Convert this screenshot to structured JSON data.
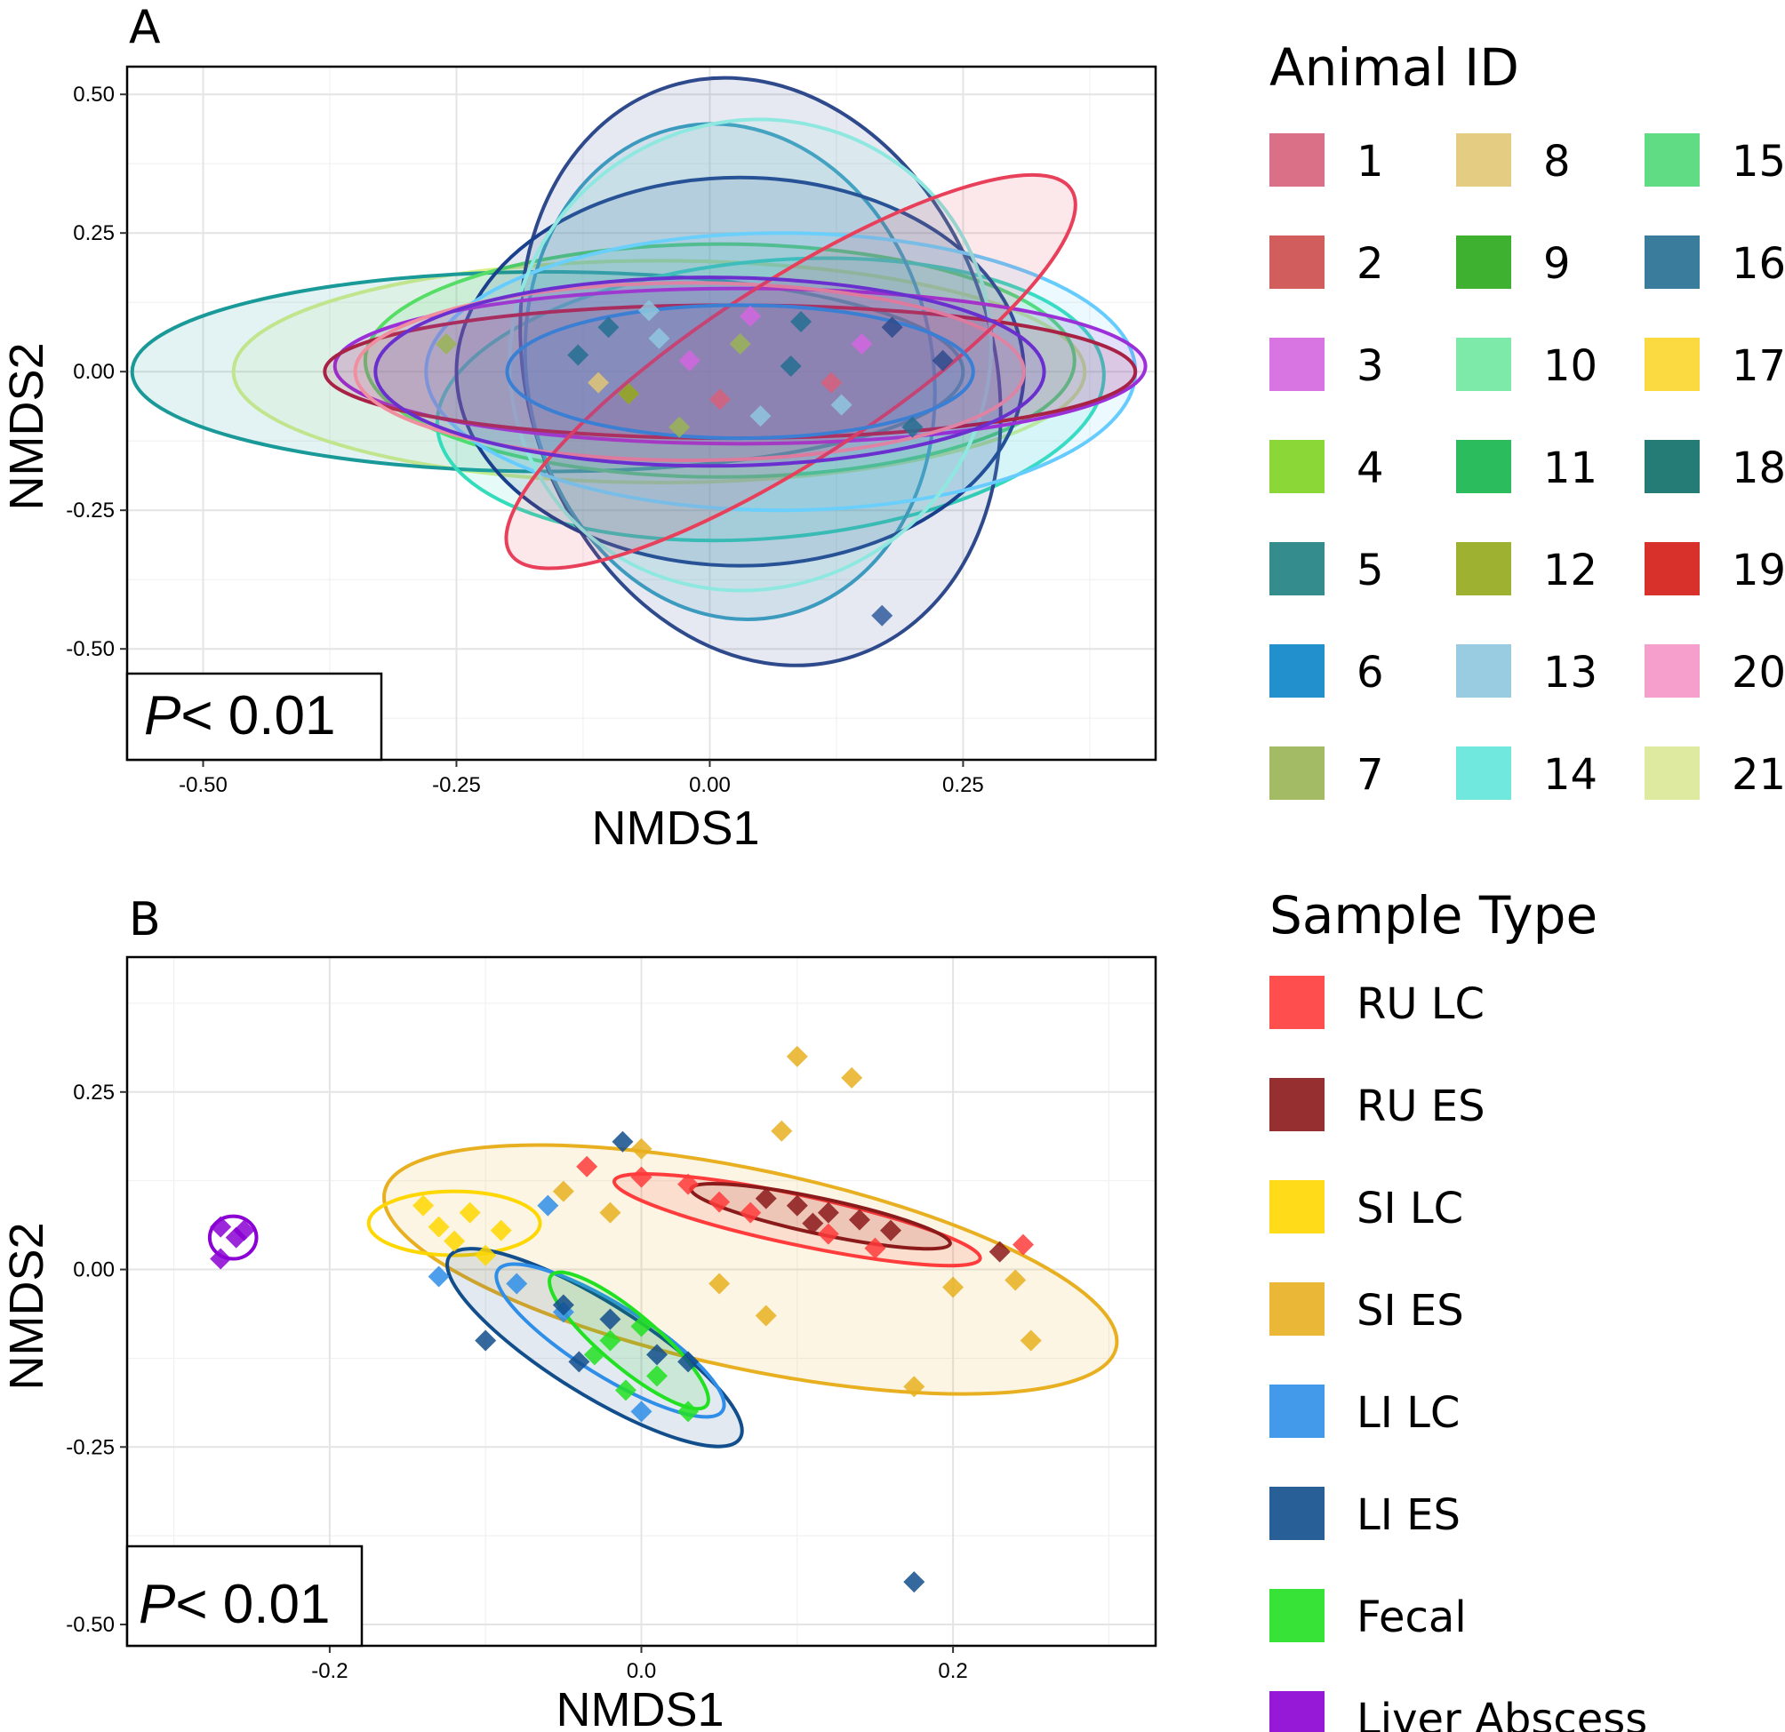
{
  "chart_data": [
    {
      "panel": "A",
      "type": "scatter",
      "xlabel": "NMDS1",
      "ylabel": "NMDS2",
      "xlim": [
        -0.575,
        0.44
      ],
      "ylim": [
        -0.7,
        0.55
      ],
      "xticks": [
        "-0.50",
        "-0.25",
        "0.00",
        "0.25"
      ],
      "xtick_values": [
        -0.5,
        -0.25,
        0.0,
        0.25
      ],
      "yticks": [
        "0.50",
        "0.25",
        "0.00",
        "-0.25",
        "-0.50"
      ],
      "ytick_values": [
        0.5,
        0.25,
        0.0,
        -0.25,
        -0.5
      ],
      "annotation": {
        "italic": "P",
        "rest": "< 0.01"
      },
      "legend_title": "Animal ID",
      "series": [
        {
          "name": "1",
          "color": "#d6607a"
        },
        {
          "name": "2",
          "color": "#cc4b4b"
        },
        {
          "name": "3",
          "color": "#d466e0"
        },
        {
          "name": "4",
          "color": "#7ed321"
        },
        {
          "name": "5",
          "color": "#1e7f7f"
        },
        {
          "name": "6",
          "color": "#0a84c6"
        },
        {
          "name": "7",
          "color": "#9ab455"
        },
        {
          "name": "8",
          "color": "#e2c675"
        },
        {
          "name": "9",
          "color": "#2aa81a"
        },
        {
          "name": "10",
          "color": "#6fe8a0"
        },
        {
          "name": "11",
          "color": "#14b64b"
        },
        {
          "name": "12",
          "color": "#94a81a"
        },
        {
          "name": "13",
          "color": "#8fc7de"
        },
        {
          "name": "14",
          "color": "#62e6da"
        },
        {
          "name": "15",
          "color": "#4fd977"
        },
        {
          "name": "16",
          "color": "#246e91"
        },
        {
          "name": "17",
          "color": "#fad52c"
        },
        {
          "name": "18",
          "color": "#0d6e68"
        },
        {
          "name": "19",
          "color": "#d41b14"
        },
        {
          "name": "20",
          "color": "#f593c6"
        },
        {
          "name": "21",
          "color": "#d9e896"
        }
      ],
      "ellipses": [
        {
          "color": "#d9ef8b",
          "cx": -0.05,
          "cy": 0.0,
          "rx": 0.42,
          "ry": 0.2,
          "angle": 0
        },
        {
          "color": "#1a9999",
          "cx": -0.16,
          "cy": 0.0,
          "rx": 0.41,
          "ry": 0.18,
          "angle": 0
        },
        {
          "color": "#55dd66",
          "cx": 0.01,
          "cy": 0.02,
          "rx": 0.35,
          "ry": 0.21,
          "angle": 0
        },
        {
          "color": "#33ddbb",
          "cx": 0.06,
          "cy": -0.05,
          "rx": 0.33,
          "ry": 0.25,
          "angle": 5
        },
        {
          "color": "#2f4a8c",
          "cx": 0.05,
          "cy": 0.0,
          "rx": 0.23,
          "ry": 0.54,
          "angle": 18
        },
        {
          "color": "#3b9abe",
          "cx": 0.02,
          "cy": 0.0,
          "rx": 0.2,
          "ry": 0.45,
          "angle": 12
        },
        {
          "color": "#1a3f8c",
          "cx": 0.03,
          "cy": 0.0,
          "rx": 0.28,
          "ry": 0.35,
          "angle": 0
        },
        {
          "color": "#66ccff",
          "cx": 0.07,
          "cy": 0.0,
          "rx": 0.35,
          "ry": 0.25,
          "angle": 0
        },
        {
          "color": "#8fe8e0",
          "cx": 0.04,
          "cy": 0.03,
          "rx": 0.24,
          "ry": 0.42,
          "angle": 30
        },
        {
          "color": "#9b30d9",
          "cx": 0.03,
          "cy": 0.01,
          "rx": 0.4,
          "ry": 0.14,
          "angle": 0
        },
        {
          "color": "#a82246",
          "cx": 0.02,
          "cy": 0.0,
          "rx": 0.4,
          "ry": 0.12,
          "angle": 0
        },
        {
          "color": "#f08fa0",
          "cx": -0.02,
          "cy": 0.0,
          "rx": 0.33,
          "ry": 0.16,
          "angle": 0
        },
        {
          "color": "#e8405a",
          "cx": 0.08,
          "cy": 0.0,
          "rx": 0.33,
          "ry": 0.16,
          "angle": 33
        },
        {
          "color": "#6a2fcf",
          "cx": 0.0,
          "cy": 0.0,
          "rx": 0.33,
          "ry": 0.17,
          "angle": 0
        },
        {
          "color": "#3a7fd4",
          "cx": 0.03,
          "cy": 0.0,
          "rx": 0.23,
          "ry": 0.12,
          "angle": 0
        }
      ],
      "points": [
        {
          "x": -0.1,
          "y": 0.08,
          "c": "#246e91"
        },
        {
          "x": -0.05,
          "y": 0.06,
          "c": "#8fc7de"
        },
        {
          "x": -0.02,
          "y": 0.02,
          "c": "#d466e0"
        },
        {
          "x": 0.03,
          "y": 0.05,
          "c": "#9ab455"
        },
        {
          "x": 0.08,
          "y": 0.01,
          "c": "#246e91"
        },
        {
          "x": 0.12,
          "y": -0.02,
          "c": "#d6607a"
        },
        {
          "x": -0.08,
          "y": -0.04,
          "c": "#94a81a"
        },
        {
          "x": -0.13,
          "y": 0.03,
          "c": "#246e91"
        },
        {
          "x": 0.05,
          "y": -0.08,
          "c": "#8fc7de"
        },
        {
          "x": 0.15,
          "y": 0.05,
          "c": "#d466e0"
        },
        {
          "x": 0.2,
          "y": -0.1,
          "c": "#246e91"
        },
        {
          "x": 0.23,
          "y": 0.02,
          "c": "#2f4a8c"
        },
        {
          "x": -0.03,
          "y": -0.1,
          "c": "#9ab455"
        },
        {
          "x": 0.01,
          "y": -0.05,
          "c": "#d6607a"
        },
        {
          "x": 0.09,
          "y": 0.09,
          "c": "#246e91"
        },
        {
          "x": -0.11,
          "y": -0.02,
          "c": "#e2c675"
        },
        {
          "x": 0.13,
          "y": -0.06,
          "c": "#8fc7de"
        },
        {
          "x": 0.18,
          "y": 0.08,
          "c": "#2f4a8c"
        },
        {
          "x": -0.06,
          "y": 0.11,
          "c": "#8fc7de"
        },
        {
          "x": 0.04,
          "y": 0.1,
          "c": "#d466e0"
        },
        {
          "x": -0.26,
          "y": 0.05,
          "c": "#9ab455"
        },
        {
          "x": 0.17,
          "y": -0.44,
          "c": "#2f5a9e"
        }
      ]
    },
    {
      "panel": "B",
      "type": "scatter",
      "xlabel": "NMDS1",
      "ylabel": "NMDS2",
      "xlim": [
        -0.33,
        0.33
      ],
      "ylim": [
        -0.53,
        0.44
      ],
      "xticks": [
        "-0.2",
        "0.0",
        "0.2"
      ],
      "xtick_values": [
        -0.2,
        0.0,
        0.2
      ],
      "yticks": [
        "0.25",
        "0.00",
        "-0.25",
        "-0.50"
      ],
      "ytick_values": [
        0.25,
        0.0,
        -0.25,
        -0.5
      ],
      "annotation": {
        "italic": "P",
        "rest": "< 0.01"
      },
      "legend_title": "Sample Type",
      "series": [
        {
          "name": "RU LC",
          "color": "#ff3b3b"
        },
        {
          "name": "RU ES",
          "color": "#8b1a1a"
        },
        {
          "name": "SI LC",
          "color": "#ffd700"
        },
        {
          "name": "SI ES",
          "color": "#e8b020"
        },
        {
          "name": "LI LC",
          "color": "#2f8ee8"
        },
        {
          "name": "LI ES",
          "color": "#124e8c"
        },
        {
          "name": "Fecal",
          "color": "#22e022"
        },
        {
          "name": "Liver Abscess",
          "color": "#8b00d4"
        }
      ],
      "ellipses": [
        {
          "color": "#e8b020",
          "cx": 0.07,
          "cy": 0.0,
          "rx": 0.24,
          "ry": 0.14,
          "angle": -12,
          "fill": true
        },
        {
          "color": "#ff3b3b",
          "cx": 0.1,
          "cy": 0.07,
          "rx": 0.12,
          "ry": 0.035,
          "angle": -12,
          "fill": true
        },
        {
          "color": "#8b1a1a",
          "cx": 0.115,
          "cy": 0.075,
          "rx": 0.085,
          "ry": 0.025,
          "angle": -12,
          "fill": true
        },
        {
          "color": "#ffd700",
          "cx": -0.12,
          "cy": 0.065,
          "rx": 0.055,
          "ry": 0.045,
          "angle": 0,
          "fill": false
        },
        {
          "color": "#124e8c",
          "cx": -0.03,
          "cy": -0.11,
          "rx": 0.11,
          "ry": 0.065,
          "angle": -32,
          "fill": true
        },
        {
          "color": "#2f8ee8",
          "cx": -0.02,
          "cy": -0.1,
          "rx": 0.085,
          "ry": 0.05,
          "angle": -32,
          "fill": false
        },
        {
          "color": "#22e022",
          "cx": -0.008,
          "cy": -0.1,
          "rx": 0.065,
          "ry": 0.038,
          "angle": -40,
          "fill": true
        },
        {
          "color": "#8b00d4",
          "cx": -0.262,
          "cy": 0.045,
          "rx": 0.015,
          "ry": 0.03,
          "angle": 0,
          "fill": false
        }
      ],
      "points": [
        {
          "x": 0.1,
          "y": 0.3,
          "c": "#e8b020"
        },
        {
          "x": 0.135,
          "y": 0.27,
          "c": "#e8b020"
        },
        {
          "x": 0.09,
          "y": 0.195,
          "c": "#e8b020"
        },
        {
          "x": 0.0,
          "y": 0.17,
          "c": "#e8b020"
        },
        {
          "x": -0.05,
          "y": 0.11,
          "c": "#e8b020"
        },
        {
          "x": 0.05,
          "y": -0.02,
          "c": "#e8b020"
        },
        {
          "x": 0.08,
          "y": -0.065,
          "c": "#e8b020"
        },
        {
          "x": 0.24,
          "y": -0.015,
          "c": "#e8b020"
        },
        {
          "x": 0.25,
          "y": -0.1,
          "c": "#e8b020"
        },
        {
          "x": 0.175,
          "y": -0.165,
          "c": "#e8b020"
        },
        {
          "x": 0.2,
          "y": -0.025,
          "c": "#e8b020"
        },
        {
          "x": -0.02,
          "y": 0.08,
          "c": "#e8b020"
        },
        {
          "x": -0.035,
          "y": 0.145,
          "c": "#ff3b3b"
        },
        {
          "x": 0.0,
          "y": 0.13,
          "c": "#ff3b3b"
        },
        {
          "x": 0.03,
          "y": 0.12,
          "c": "#ff3b3b"
        },
        {
          "x": 0.05,
          "y": 0.095,
          "c": "#ff3b3b"
        },
        {
          "x": 0.07,
          "y": 0.08,
          "c": "#ff3b3b"
        },
        {
          "x": 0.12,
          "y": 0.05,
          "c": "#ff3b3b"
        },
        {
          "x": 0.15,
          "y": 0.03,
          "c": "#ff3b3b"
        },
        {
          "x": 0.245,
          "y": 0.035,
          "c": "#ff3b3b"
        },
        {
          "x": 0.08,
          "y": 0.1,
          "c": "#8b1a1a"
        },
        {
          "x": 0.1,
          "y": 0.09,
          "c": "#8b1a1a"
        },
        {
          "x": 0.12,
          "y": 0.08,
          "c": "#8b1a1a"
        },
        {
          "x": 0.14,
          "y": 0.07,
          "c": "#8b1a1a"
        },
        {
          "x": 0.16,
          "y": 0.055,
          "c": "#8b1a1a"
        },
        {
          "x": 0.11,
          "y": 0.065,
          "c": "#8b1a1a"
        },
        {
          "x": 0.23,
          "y": 0.025,
          "c": "#8b1a1a"
        },
        {
          "x": -0.14,
          "y": 0.09,
          "c": "#ffd700"
        },
        {
          "x": -0.13,
          "y": 0.06,
          "c": "#ffd700"
        },
        {
          "x": -0.11,
          "y": 0.08,
          "c": "#ffd700"
        },
        {
          "x": -0.12,
          "y": 0.04,
          "c": "#ffd700"
        },
        {
          "x": -0.09,
          "y": 0.055,
          "c": "#ffd700"
        },
        {
          "x": -0.1,
          "y": 0.02,
          "c": "#ffd700"
        },
        {
          "x": -0.13,
          "y": -0.01,
          "c": "#2f8ee8"
        },
        {
          "x": -0.08,
          "y": -0.02,
          "c": "#2f8ee8"
        },
        {
          "x": -0.06,
          "y": 0.09,
          "c": "#2f8ee8"
        },
        {
          "x": -0.05,
          "y": -0.06,
          "c": "#2f8ee8"
        },
        {
          "x": 0.0,
          "y": -0.2,
          "c": "#2f8ee8"
        },
        {
          "x": -0.012,
          "y": 0.18,
          "c": "#124e8c"
        },
        {
          "x": -0.1,
          "y": -0.1,
          "c": "#124e8c"
        },
        {
          "x": -0.05,
          "y": -0.05,
          "c": "#124e8c"
        },
        {
          "x": -0.02,
          "y": -0.07,
          "c": "#124e8c"
        },
        {
          "x": 0.01,
          "y": -0.12,
          "c": "#124e8c"
        },
        {
          "x": 0.03,
          "y": -0.13,
          "c": "#124e8c"
        },
        {
          "x": -0.04,
          "y": -0.13,
          "c": "#124e8c"
        },
        {
          "x": 0.175,
          "y": -0.44,
          "c": "#124e8c"
        },
        {
          "x": -0.02,
          "y": -0.1,
          "c": "#22e022"
        },
        {
          "x": 0.0,
          "y": -0.08,
          "c": "#22e022"
        },
        {
          "x": 0.01,
          "y": -0.15,
          "c": "#22e022"
        },
        {
          "x": -0.01,
          "y": -0.17,
          "c": "#22e022"
        },
        {
          "x": 0.03,
          "y": -0.2,
          "c": "#22e022"
        },
        {
          "x": -0.03,
          "y": -0.12,
          "c": "#22e022"
        },
        {
          "x": -0.27,
          "y": 0.06,
          "c": "#8b00d4"
        },
        {
          "x": -0.26,
          "y": 0.045,
          "c": "#8b00d4"
        },
        {
          "x": -0.27,
          "y": 0.015,
          "c": "#8b00d4"
        },
        {
          "x": -0.255,
          "y": 0.055,
          "c": "#8b00d4"
        }
      ]
    }
  ]
}
